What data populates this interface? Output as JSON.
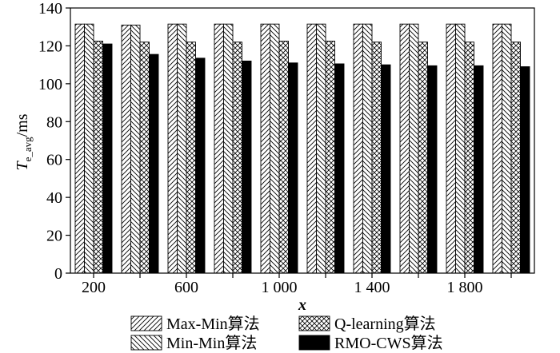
{
  "chart_data": {
    "type": "bar",
    "x": [
      200,
      400,
      600,
      800,
      1000,
      1200,
      1400,
      1600,
      1800,
      2000
    ],
    "x_tick_labels": [
      "200",
      "600",
      "1 000",
      "1 400",
      "1 800"
    ],
    "ylim": [
      0,
      140
    ],
    "y_ticks": [
      "0",
      "20",
      "40",
      "60",
      "80",
      "100",
      "120",
      "140"
    ],
    "xlabel": "x",
    "ylabel": {
      "main": "T",
      "subscript": "e_avg",
      "unit": "/ms"
    },
    "legend_position": "bottom, two columns",
    "grid": false,
    "series": [
      {
        "name": "Max-Min算法",
        "pattern": "forward-diagonal",
        "values": [
          131.5,
          131,
          131.5,
          131.5,
          131.5,
          131.5,
          131.5,
          131.5,
          131.5,
          131.5
        ]
      },
      {
        "name": "Min-Min算法",
        "pattern": "back-diagonal",
        "values": [
          131.5,
          131,
          131.5,
          131.5,
          131.5,
          131.5,
          131.5,
          131.5,
          131.5,
          131.5
        ]
      },
      {
        "name": "Q-learning算法",
        "pattern": "cross-hatch",
        "values": [
          122.5,
          122,
          122,
          122,
          122.5,
          122.5,
          122,
          122,
          122,
          122
        ]
      },
      {
        "name": "RMO-CWS算法",
        "pattern": "solid",
        "values": [
          121,
          115.5,
          113.5,
          112,
          111,
          110.5,
          110,
          109.5,
          109.5,
          109
        ]
      }
    ]
  }
}
